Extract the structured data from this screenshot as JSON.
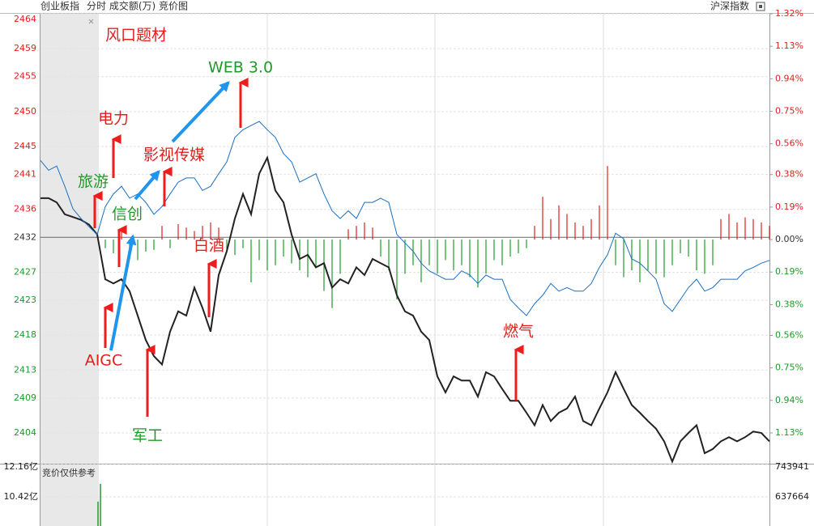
{
  "header": {
    "title": "创业板指",
    "subtitle": "分时 成交额(万) 竞价图",
    "index_selector": "沪深指数"
  },
  "chart_data": [
    {
      "type": "line",
      "ylim": [
        2399.6,
        2464
      ],
      "yticks": [
        2464,
        2459,
        2455,
        2450,
        2445,
        2441,
        2436,
        2432,
        2427,
        2423,
        2418,
        2413,
        2409,
        2404
      ],
      "y2lim": [
        -1.31,
        1.32
      ],
      "y2ticks": [
        {
          "value": 1.32,
          "label": "1.32%"
        },
        {
          "value": 1.13,
          "label": "1.13%"
        },
        {
          "value": 0.94,
          "label": "0.94%"
        },
        {
          "value": 0.75,
          "label": "0.75%"
        },
        {
          "value": 0.56,
          "label": "0.56%"
        },
        {
          "value": 0.38,
          "label": "0.38%"
        },
        {
          "value": 0.19,
          "label": "0.19%"
        },
        {
          "value": 0,
          "label": "0.00%"
        },
        {
          "value": -0.19,
          "label": "0.19%"
        },
        {
          "value": -0.38,
          "label": "0.38%"
        },
        {
          "value": -0.56,
          "label": "0.56%"
        },
        {
          "value": -0.75,
          "label": "0.75%"
        },
        {
          "value": -0.94,
          "label": "0.94%"
        },
        {
          "value": -1.13,
          "label": "1.13%"
        }
      ],
      "grid": true,
      "up_color": "#e0201d",
      "down_color": "#1f9a2a",
      "flat_color": "#333333",
      "series": [
        {
          "color": "#222222",
          "values": [
            2437.6,
            2437.6,
            2437.0,
            2435.3,
            2434.9,
            2434.5,
            2433.8,
            2432.4,
            2426.0,
            2425.4,
            2426.0,
            2424.3,
            2420.8,
            2417.3,
            2415.0,
            2413.8,
            2418.5,
            2421.4,
            2420.8,
            2424.8,
            2421.9,
            2418.5,
            2426.6,
            2430.0,
            2434.7,
            2438.2,
            2435.3,
            2441.1,
            2443.4,
            2438.7,
            2437.0,
            2432.4,
            2428.9,
            2429.5,
            2427.7,
            2428.3,
            2424.8,
            2426.0,
            2425.4,
            2427.7,
            2426.6,
            2428.9,
            2428.3,
            2427.7,
            2423.7,
            2421.4,
            2420.8,
            2418.5,
            2417.3,
            2412.1,
            2409.8,
            2412.1,
            2411.5,
            2411.5,
            2409.2,
            2412.7,
            2412.1,
            2410.3,
            2408.6,
            2408.6,
            2406.9,
            2405.1,
            2408.0,
            2405.7,
            2406.9,
            2407.5,
            2409.2,
            2405.7,
            2405.1,
            2407.5,
            2409.8,
            2412.7,
            2410.3,
            2408.0,
            2406.9,
            2405.7,
            2404.6,
            2402.8,
            2399.9,
            2402.8,
            2404.0,
            2405.1,
            2401.1,
            2401.7,
            2402.8,
            2403.4,
            2402.8,
            2403.4,
            2404.2,
            2404.0,
            2402.8
          ]
        },
        {
          "color": "#1a6fc0",
          "values": [
            2443.0,
            2441.6,
            2442.2,
            2439.3,
            2436.1,
            2434.7,
            2433.5,
            2432.4,
            2436.4,
            2438.2,
            2439.3,
            2437.6,
            2438.2,
            2437.0,
            2435.3,
            2436.4,
            2438.2,
            2439.9,
            2440.5,
            2440.5,
            2438.7,
            2439.3,
            2441.1,
            2442.8,
            2446.3,
            2447.4,
            2448.0,
            2448.6,
            2447.4,
            2446.3,
            2444.0,
            2442.8,
            2439.9,
            2440.5,
            2441.1,
            2438.2,
            2435.8,
            2434.7,
            2435.8,
            2434.7,
            2437.0,
            2437.0,
            2437.6,
            2437.0,
            2432.4,
            2431.2,
            2430.0,
            2428.3,
            2427.2,
            2426.6,
            2426.0,
            2426.0,
            2427.2,
            2426.6,
            2425.4,
            2426.6,
            2426.0,
            2426.0,
            2423.1,
            2421.9,
            2420.8,
            2422.5,
            2423.7,
            2425.4,
            2424.3,
            2424.8,
            2424.3,
            2424.3,
            2425.4,
            2427.7,
            2429.5,
            2432.6,
            2431.8,
            2428.9,
            2428.3,
            2427.2,
            2426.0,
            2422.5,
            2421.4,
            2423.1,
            2424.8,
            2426.0,
            2424.3,
            2424.8,
            2426.0,
            2426.0,
            2426.0,
            2427.2,
            2427.7,
            2428.3,
            2428.7
          ]
        },
        {
          "type": "bar",
          "axis": "y2",
          "values": [
            -0.05,
            -0.08,
            0.06,
            -0.1,
            -0.12,
            -0.07,
            -0.06,
            0.08,
            -0.05,
            0.09,
            0.07,
            0.05,
            0.08,
            0.1,
            0.07,
            -0.06,
            -0.09,
            -0.05,
            -0.25,
            -0.12,
            -0.18,
            -0.15,
            -0.1,
            -0.14,
            -0.18,
            -0.22,
            -0.16,
            -0.3,
            -0.4,
            -0.2,
            0.06,
            0.08,
            0.1,
            0.07,
            -0.1,
            -0.18,
            -0.35,
            -0.2,
            -0.15,
            -0.25,
            -0.15,
            -0.2,
            -0.12,
            -0.18,
            -0.15,
            -0.22,
            -0.28,
            -0.2,
            -0.12,
            -0.15,
            -0.1,
            -0.08,
            -0.05,
            0.08,
            0.25,
            0.12,
            0.2,
            0.15,
            0.1,
            0.08,
            0.12,
            0.2,
            0.43,
            -0.15,
            -0.22,
            -0.18,
            -0.25,
            -0.18,
            -0.2,
            -0.22,
            -0.15,
            -0.08,
            -0.1,
            -0.18,
            -0.2,
            -0.15,
            0.12,
            0.15,
            0.1,
            0.13,
            0.12,
            0.1,
            0.08
          ]
        }
      ],
      "annotations": [
        {
          "text": "风口题材",
          "color": "#e0201d"
        },
        {
          "text": "WEB 3.0",
          "color": "#1f9a2a"
        },
        {
          "text": "电力",
          "color": "#e0201d"
        },
        {
          "text": "影视传媒",
          "color": "#e0201d"
        },
        {
          "text": "旅游",
          "color": "#1f9a2a"
        },
        {
          "text": "信创",
          "color": "#1f9a2a"
        },
        {
          "text": "白酒",
          "color": "#e0201d"
        },
        {
          "text": "AIGC",
          "color": "#e0201d"
        },
        {
          "text": "军工",
          "color": "#1f9a2a"
        },
        {
          "text": "燃气",
          "color": "#e0201d"
        }
      ]
    },
    {
      "type": "bar",
      "title": "竞价仅供参考",
      "ylim": [
        8.89,
        12.16
      ],
      "yticks": [
        {
          "value": 12.16,
          "label": "12.16亿"
        },
        {
          "value": 10.42,
          "label": "10.42亿"
        }
      ],
      "y2lim": [
        544345,
        743941
      ],
      "y2ticks": [
        743941,
        637664
      ],
      "color": "#1f9a2a",
      "values": [
        10.17,
        11.1
      ]
    }
  ]
}
